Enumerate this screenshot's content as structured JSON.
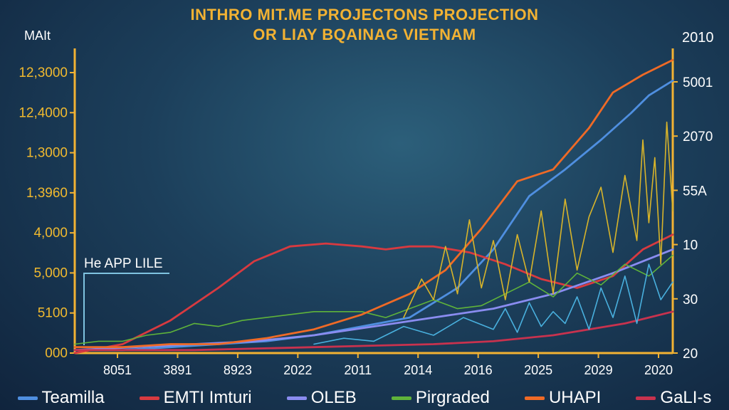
{
  "chart_data": {
    "type": "line",
    "title": "INTHRO MIT.ME PROJECTONS PROJECTION",
    "subtitle": "OR LIAY BQAINAG VIETNAM",
    "ylabel": "MAIt",
    "right_corner_label": "2010",
    "left_tick_labels": [
      "12,3000",
      "12,4000",
      "1,3000",
      "1,3960",
      "4,000",
      "5,000",
      "5100",
      "000"
    ],
    "right_tick_labels": [
      "5001",
      "2070",
      "55A",
      "10",
      "30",
      "20"
    ],
    "x_tick_labels": [
      "8051",
      "3891",
      "8923",
      "2022",
      "2011",
      "2014",
      "2016",
      "2025",
      "2029",
      "2020"
    ],
    "annotation": "He APP LILE",
    "ylim": [
      0,
      100
    ],
    "series": [
      {
        "name": "Teamilla",
        "color": "#4f8fe0",
        "style": "smooth",
        "x": [
          0,
          8,
          16,
          24,
          32,
          40,
          48,
          56,
          64,
          70,
          76,
          82,
          88,
          93,
          96,
          100
        ],
        "values": [
          1,
          1,
          2,
          3,
          4,
          6,
          9,
          12,
          22,
          35,
          53,
          62,
          72,
          81,
          87,
          92
        ]
      },
      {
        "name": "EMTI Imturi",
        "color": "#d83a40",
        "style": "smooth",
        "x": [
          0,
          8,
          16,
          24,
          30,
          36,
          42,
          48,
          52,
          56,
          60,
          66,
          72,
          78,
          84,
          90,
          95,
          100
        ],
        "values": [
          0,
          3,
          11,
          22,
          31,
          36,
          37,
          36,
          35,
          36,
          36,
          34,
          30,
          25,
          22,
          26,
          35,
          40
        ]
      },
      {
        "name": "OLEB",
        "color": "#8a8cf0",
        "style": "smooth",
        "x": [
          0,
          10,
          20,
          30,
          40,
          50,
          60,
          70,
          80,
          90,
          100
        ],
        "values": [
          1,
          2,
          3,
          4,
          6,
          9,
          12,
          15,
          20,
          27,
          35
        ]
      },
      {
        "name": "Pirgraded",
        "color": "#5fb33a",
        "style": "jagged",
        "x": [
          0,
          4,
          8,
          12,
          16,
          20,
          24,
          28,
          32,
          36,
          40,
          44,
          48,
          52,
          56,
          60,
          64,
          68,
          72,
          76,
          80,
          84,
          88,
          92,
          96,
          100
        ],
        "values": [
          3,
          4,
          4,
          6,
          7,
          10,
          9,
          11,
          12,
          13,
          14,
          14,
          14,
          12,
          15,
          18,
          15,
          16,
          20,
          24,
          19,
          27,
          23,
          30,
          26,
          33
        ]
      },
      {
        "name": "UHAPI",
        "color": "#ef6a26",
        "style": "smooth",
        "x": [
          0,
          8,
          16,
          24,
          32,
          40,
          48,
          56,
          62,
          68,
          74,
          80,
          86,
          90,
          95,
          100
        ],
        "values": [
          2,
          2,
          3,
          3,
          5,
          8,
          13,
          20,
          28,
          42,
          58,
          62,
          76,
          88,
          94,
          99
        ]
      },
      {
        "name": "GaLI-s",
        "color": "#c8324e",
        "style": "smooth",
        "x": [
          0,
          20,
          40,
          60,
          70,
          80,
          86,
          92,
          96,
          100
        ],
        "values": [
          1,
          1,
          2,
          3,
          4,
          6,
          8,
          10,
          12,
          14
        ]
      },
      {
        "name": "",
        "color": "#d8b42a",
        "style": "jagged",
        "x": [
          55,
          58,
          60,
          62,
          64,
          66,
          68,
          70,
          72,
          74,
          76,
          78,
          80,
          82,
          84,
          86,
          88,
          90,
          92,
          94,
          95,
          96,
          97,
          98,
          99,
          100
        ],
        "values": [
          12,
          25,
          18,
          36,
          20,
          45,
          22,
          38,
          18,
          40,
          24,
          48,
          20,
          52,
          28,
          46,
          56,
          34,
          60,
          38,
          72,
          44,
          66,
          30,
          78,
          48
        ]
      },
      {
        "name": "",
        "color": "#49b0de",
        "style": "jagged",
        "x": [
          40,
          45,
          50,
          55,
          60,
          65,
          70,
          72,
          74,
          76,
          78,
          80,
          82,
          84,
          86,
          88,
          90,
          92,
          94,
          96,
          98,
          100
        ],
        "values": [
          3,
          5,
          4,
          9,
          6,
          12,
          8,
          15,
          7,
          17,
          9,
          14,
          10,
          19,
          8,
          22,
          12,
          26,
          10,
          30,
          18,
          24
        ]
      }
    ]
  },
  "colors": {
    "title": "#f2b233",
    "axis": "#f2b233",
    "tick_text": "#f0b92e",
    "right_tick_text": "#ffffff",
    "annotation_line": "#7fc3e0"
  }
}
